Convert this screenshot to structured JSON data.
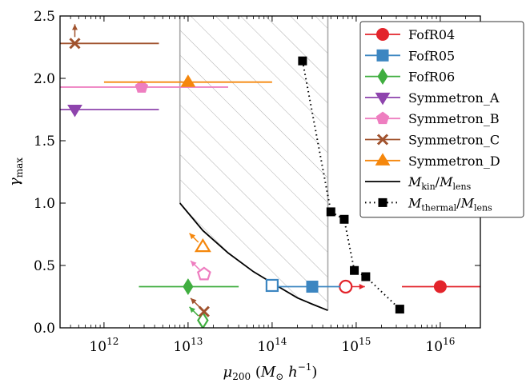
{
  "chart_data": {
    "type": "scatter",
    "x_scale": "log",
    "xlim": [
      300000000000.0,
      3e+16
    ],
    "ylim": [
      0,
      2.5
    ],
    "xlabel": {
      "base": "μ",
      "sub": "200",
      "rest": "(M",
      "sun": "⊙",
      "tail": " h",
      "sup": "−1",
      "close": ")"
    },
    "ylabel": {
      "base": "γ",
      "sub": "max"
    },
    "x_ticks": [
      {
        "value": 1000000000000.0,
        "base": "10",
        "exp": "12"
      },
      {
        "value": 10000000000000.0,
        "base": "10",
        "exp": "13"
      },
      {
        "value": 100000000000000.0,
        "base": "10",
        "exp": "14"
      },
      {
        "value": 1000000000000000.0,
        "base": "10",
        "exp": "15"
      },
      {
        "value": 1e+16,
        "base": "10",
        "exp": "16"
      }
    ],
    "y_ticks": [
      {
        "value": 0.0,
        "label": "0.0"
      },
      {
        "value": 0.5,
        "label": "0.5"
      },
      {
        "value": 1.0,
        "label": "1.0"
      },
      {
        "value": 1.5,
        "label": "1.5"
      },
      {
        "value": 2.0,
        "label": "2.0"
      },
      {
        "value": 2.5,
        "label": "2.5"
      }
    ],
    "hatched_region": {
      "x_min": 8000000000000.0,
      "x_max": 460000000000000.0
    },
    "series": [
      {
        "name": "FofR04",
        "color": "#e3242b",
        "marker": "circle",
        "points": [
          {
            "x": 1e+16,
            "y": 0.33,
            "xerr": [
              3500000000000000.0,
              3e+16
            ],
            "filled": true
          },
          {
            "x": 750000000000000.0,
            "y": 0.33,
            "filled": false,
            "arrow": "right"
          }
        ]
      },
      {
        "name": "FofR05",
        "color": "#3c86c1",
        "marker": "square",
        "points": [
          {
            "x": 300000000000000.0,
            "y": 0.33,
            "xerr": [
              100000000000000.0,
              650000000000000.0
            ],
            "filled": true
          },
          {
            "x": 100000000000000.0,
            "y": 0.34,
            "filled": false
          }
        ]
      },
      {
        "name": "FofR06",
        "color": "#3fae3f",
        "marker": "diamond",
        "points": [
          {
            "x": 10000000000000.0,
            "y": 0.33,
            "xerr": [
              2600000000000.0,
              40000000000000.0
            ],
            "filled": true
          },
          {
            "x": 15000000000000.0,
            "y": 0.06,
            "filled": false,
            "arrow": "up-left"
          }
        ]
      },
      {
        "name": "Symmetron_A",
        "color": "#8e44ad",
        "marker": "triangle-down",
        "points": [
          {
            "x": 450000000000.0,
            "y": 1.75,
            "xerr": [
              300000000000.0,
              4500000000000.0
            ],
            "filled": true
          }
        ]
      },
      {
        "name": "Symmetron_B",
        "color": "#ee7ec0",
        "marker": "pentagon",
        "points": [
          {
            "x": 2800000000000.0,
            "y": 1.93,
            "xerr": [
              300000000000.0,
              30000000000000.0
            ],
            "filled": true
          },
          {
            "x": 15500000000000.0,
            "y": 0.43,
            "filled": false,
            "arrow": "up-left"
          }
        ]
      },
      {
        "name": "Symmetron_C",
        "color": "#a0522d",
        "marker": "x",
        "points": [
          {
            "x": 450000000000.0,
            "y": 2.28,
            "xerr": [
              300000000000.0,
              4500000000000.0
            ],
            "filled": true,
            "arrow": "up"
          },
          {
            "x": 15500000000000.0,
            "y": 0.13,
            "filled": true,
            "arrow": "up-left"
          }
        ]
      },
      {
        "name": "Symmetron_D",
        "color": "#f5870c",
        "marker": "triangle-up",
        "points": [
          {
            "x": 10000000000000.0,
            "y": 1.97,
            "xerr": [
              1000000000000.0,
              100000000000000.0
            ],
            "filled": true
          },
          {
            "x": 15000000000000.0,
            "y": 0.65,
            "filled": false,
            "arrow": "up-left"
          }
        ]
      }
    ],
    "lines": [
      {
        "name": "M_kin/M_lens",
        "label_base": "M",
        "label_sub": "kin",
        "label_den": "M",
        "label_den_sub": "lens",
        "color": "#000000",
        "style": "solid",
        "points": [
          [
            8000000000000.0,
            1.0
          ],
          [
            15000000000000.0,
            0.78
          ],
          [
            30000000000000.0,
            0.6
          ],
          [
            60000000000000.0,
            0.45
          ],
          [
            100000000000000.0,
            0.36
          ],
          [
            200000000000000.0,
            0.24
          ],
          [
            300000000000000.0,
            0.19
          ],
          [
            460000000000000.0,
            0.14
          ]
        ]
      },
      {
        "name": "M_thermal/M_lens",
        "label_base": "M",
        "label_sub": "thermal",
        "label_den": "M",
        "label_den_sub": "lens",
        "color": "#000000",
        "style": "dotted",
        "marker": "square",
        "points": [
          [
            230000000000000.0,
            2.14
          ],
          [
            500000000000000.0,
            0.93
          ],
          [
            720000000000000.0,
            0.87
          ],
          [
            950000000000000.0,
            0.46
          ],
          [
            1300000000000000.0,
            0.41
          ],
          [
            3300000000000000.0,
            0.15
          ]
        ]
      }
    ],
    "legend_position": "top-right"
  }
}
